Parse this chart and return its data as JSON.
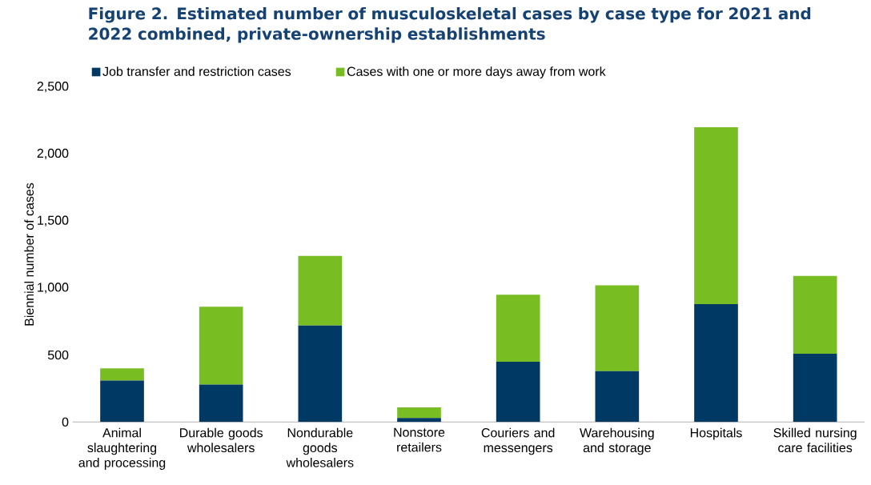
{
  "chart_data": {
    "type": "bar",
    "stacked": true,
    "title": "Figure 2. Estimated number of musculoskeletal cases by case type for 2021 and 2022 combined, private-ownership establishments",
    "ylabel": "Biennial number of cases",
    "categories": [
      "Animal slaughtering and processing",
      "Durable goods wholesalers",
      "Nondurable goods wholesalers",
      "Nonstore retailers",
      "Couriers and messengers",
      "Warehousing and storage",
      "Hospitals",
      "Skilled nursing care facilities"
    ],
    "series": [
      {
        "name": "Job transfer and restriction cases",
        "color": "#003963",
        "values": [
          310,
          280,
          720,
          30,
          450,
          380,
          880,
          510
        ]
      },
      {
        "name": "Cases with one or more days away from work",
        "color": "#78bd21",
        "values": [
          90,
          580,
          520,
          80,
          500,
          640,
          1320,
          580
        ]
      }
    ],
    "ylim": [
      0,
      2500
    ],
    "yticks": [
      {
        "value": 0,
        "label": "0"
      },
      {
        "value": 500,
        "label": "500"
      },
      {
        "value": 1000,
        "label": "1,000"
      },
      {
        "value": 1500,
        "label": "1,500"
      },
      {
        "value": 2000,
        "label": "2,000"
      },
      {
        "value": 2500,
        "label": "2,500"
      }
    ],
    "grid": false,
    "legend": "top left"
  }
}
